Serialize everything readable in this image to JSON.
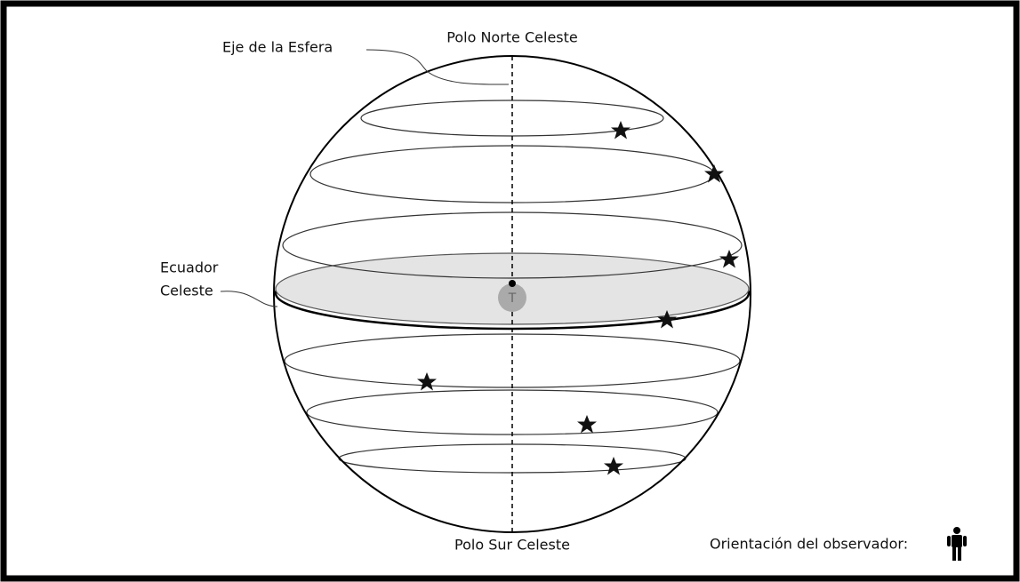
{
  "labels": {
    "north_pole": "Polo Norte Celeste",
    "axis": "Eje  de la Esfera",
    "equator": [
      "Ecuador",
      "Celeste"
    ],
    "earth": "T",
    "south_pole": "Polo Sur Celeste",
    "observer": "Orientación del observador:"
  }
}
